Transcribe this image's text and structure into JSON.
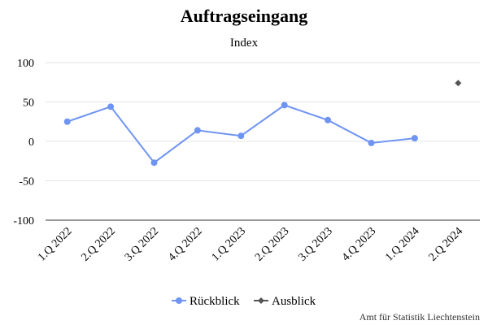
{
  "chart_data": {
    "type": "line",
    "title": "Auftragseingang",
    "subtitle": "Index",
    "categories": [
      "1.Q 2022",
      "2.Q 2022",
      "3.Q 2022",
      "4.Q 2022",
      "1.Q 2023",
      "2.Q 2023",
      "3.Q 2023",
      "4.Q 2023",
      "1.Q 2024",
      "2.Q 2024"
    ],
    "yticks": [
      100,
      50,
      0,
      -50,
      -100
    ],
    "ylim": [
      -100,
      100
    ],
    "grid": true,
    "legend_position": "bottom",
    "series": [
      {
        "name": "Rückblick",
        "color": "#6f94f2",
        "marker": "circle",
        "values": [
          25,
          44,
          -27,
          14,
          7,
          46,
          27,
          -2,
          4,
          null
        ]
      },
      {
        "name": "Ausblick",
        "color": "#555555",
        "marker": "diamond",
        "values": [
          null,
          null,
          null,
          null,
          null,
          null,
          null,
          null,
          null,
          74
        ]
      }
    ]
  },
  "credit": "Amt für Statistik Liechtenstein"
}
